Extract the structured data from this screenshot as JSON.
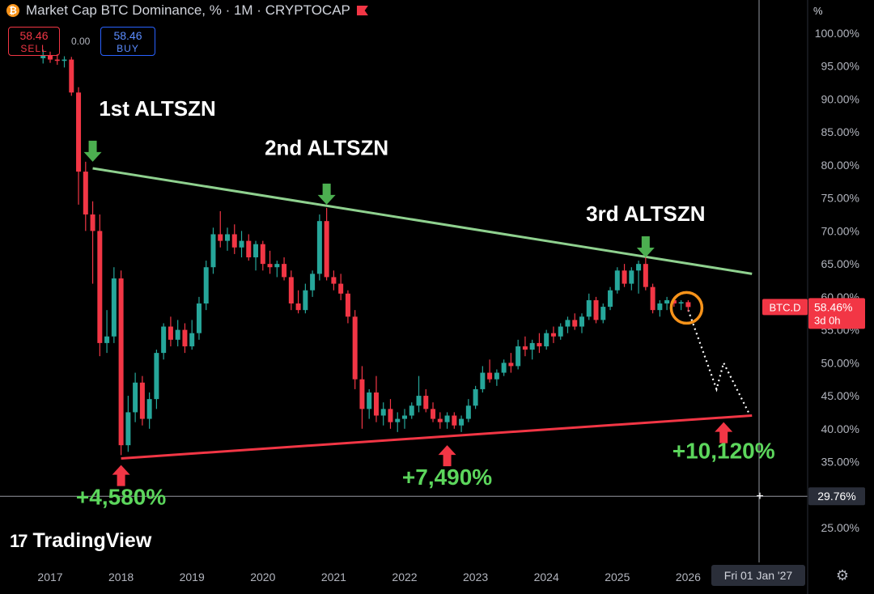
{
  "header": {
    "title": "Market Cap BTC Dominance, % · 1M · CRYPTOCAP",
    "sell_value": "58.46",
    "sell_label": "SELL",
    "spread": "0.00",
    "buy_value": "58.46",
    "buy_label": "BUY",
    "unit": "%"
  },
  "brand": "TradingView",
  "date_chip": "Fri 01 Jan '27",
  "price_tag": {
    "symbol": "BTC.D",
    "value": "58.46%",
    "countdown": "3d 0h"
  },
  "crosshair_tag": "29.76%",
  "colors": {
    "up": "#26a69a",
    "down": "#f23645",
    "resistance": "#8fd18f",
    "support": "#f23645",
    "highlight": "#f7931a",
    "annotation_green": "#5cd65c"
  },
  "chart_data": {
    "type": "candlestick",
    "title": "Market Cap BTC Dominance, % · 1M · CRYPTOCAP",
    "y_ticks": [
      "25.00%",
      "30.00%",
      "35.00%",
      "40.00%",
      "45.00%",
      "50.00%",
      "55.00%",
      "60.00%",
      "65.00%",
      "70.00%",
      "75.00%",
      "80.00%",
      "85.00%",
      "90.00%",
      "95.00%",
      "100.00%"
    ],
    "ylim": [
      22.5,
      103.5
    ],
    "x_ticks": [
      "2017",
      "2018",
      "2019",
      "2020",
      "2021",
      "2022",
      "2023",
      "2024",
      "2025",
      "2026"
    ],
    "xlim": [
      2016.8,
      2027.5
    ],
    "last_value": 58.46,
    "candles": [
      {
        "t": 2016.9,
        "o": 96.2,
        "h": 97.5,
        "l": 95.4,
        "c": 96.6
      },
      {
        "t": 2017.0,
        "o": 96.6,
        "h": 97.2,
        "l": 95.5,
        "c": 96.0
      },
      {
        "t": 2017.1,
        "o": 96.0,
        "h": 96.8,
        "l": 95.2,
        "c": 95.8
      },
      {
        "t": 2017.2,
        "o": 95.8,
        "h": 96.5,
        "l": 94.8,
        "c": 96.0
      },
      {
        "t": 2017.3,
        "o": 96.0,
        "h": 96.4,
        "l": 90.5,
        "c": 91.0
      },
      {
        "t": 2017.4,
        "o": 91.0,
        "h": 91.8,
        "l": 74.0,
        "c": 79.0
      },
      {
        "t": 2017.5,
        "o": 79.0,
        "h": 80.5,
        "l": 70.0,
        "c": 72.5
      },
      {
        "t": 2017.6,
        "o": 72.5,
        "h": 74.5,
        "l": 62.0,
        "c": 70.0
      },
      {
        "t": 2017.7,
        "o": 70.0,
        "h": 72.5,
        "l": 51.0,
        "c": 53.0
      },
      {
        "t": 2017.8,
        "o": 53.0,
        "h": 58.0,
        "l": 51.5,
        "c": 54.0
      },
      {
        "t": 2017.9,
        "o": 54.0,
        "h": 64.5,
        "l": 53.0,
        "c": 62.8
      },
      {
        "t": 2018.0,
        "o": 62.8,
        "h": 64.0,
        "l": 36.0,
        "c": 37.5
      },
      {
        "t": 2018.1,
        "o": 37.5,
        "h": 45.0,
        "l": 36.5,
        "c": 42.5
      },
      {
        "t": 2018.2,
        "o": 42.5,
        "h": 48.5,
        "l": 41.0,
        "c": 47.0
      },
      {
        "t": 2018.3,
        "o": 47.0,
        "h": 48.0,
        "l": 40.5,
        "c": 41.5
      },
      {
        "t": 2018.4,
        "o": 41.5,
        "h": 45.5,
        "l": 40.0,
        "c": 44.5
      },
      {
        "t": 2018.5,
        "o": 44.5,
        "h": 52.0,
        "l": 43.0,
        "c": 51.5
      },
      {
        "t": 2018.6,
        "o": 51.5,
        "h": 56.0,
        "l": 50.5,
        "c": 55.5
      },
      {
        "t": 2018.7,
        "o": 55.5,
        "h": 57.0,
        "l": 52.5,
        "c": 53.5
      },
      {
        "t": 2018.8,
        "o": 53.5,
        "h": 56.5,
        "l": 52.5,
        "c": 55.0
      },
      {
        "t": 2018.9,
        "o": 55.0,
        "h": 56.0,
        "l": 51.5,
        "c": 52.5
      },
      {
        "t": 2019.0,
        "o": 52.5,
        "h": 56.5,
        "l": 52.0,
        "c": 54.5
      },
      {
        "t": 2019.1,
        "o": 54.5,
        "h": 60.0,
        "l": 53.5,
        "c": 59.0
      },
      {
        "t": 2019.2,
        "o": 59.0,
        "h": 65.5,
        "l": 58.0,
        "c": 64.5
      },
      {
        "t": 2019.3,
        "o": 64.5,
        "h": 70.5,
        "l": 63.5,
        "c": 69.5
      },
      {
        "t": 2019.4,
        "o": 69.5,
        "h": 73.0,
        "l": 67.5,
        "c": 68.5
      },
      {
        "t": 2019.5,
        "o": 68.5,
        "h": 70.5,
        "l": 67.0,
        "c": 69.5
      },
      {
        "t": 2019.6,
        "o": 69.5,
        "h": 71.0,
        "l": 66.5,
        "c": 67.5
      },
      {
        "t": 2019.7,
        "o": 67.5,
        "h": 70.0,
        "l": 66.0,
        "c": 68.5
      },
      {
        "t": 2019.8,
        "o": 68.5,
        "h": 69.5,
        "l": 65.5,
        "c": 66.0
      },
      {
        "t": 2019.9,
        "o": 66.0,
        "h": 68.5,
        "l": 64.0,
        "c": 68.0
      },
      {
        "t": 2020.0,
        "o": 68.0,
        "h": 68.5,
        "l": 64.0,
        "c": 65.0
      },
      {
        "t": 2020.1,
        "o": 65.0,
        "h": 67.0,
        "l": 63.5,
        "c": 64.5
      },
      {
        "t": 2020.2,
        "o": 64.5,
        "h": 65.5,
        "l": 63.0,
        "c": 65.0
      },
      {
        "t": 2020.3,
        "o": 65.0,
        "h": 66.0,
        "l": 62.5,
        "c": 63.0
      },
      {
        "t": 2020.4,
        "o": 63.0,
        "h": 64.0,
        "l": 58.0,
        "c": 59.0
      },
      {
        "t": 2020.5,
        "o": 59.0,
        "h": 61.0,
        "l": 57.5,
        "c": 58.0
      },
      {
        "t": 2020.6,
        "o": 58.0,
        "h": 62.0,
        "l": 57.5,
        "c": 61.0
      },
      {
        "t": 2020.7,
        "o": 61.0,
        "h": 64.0,
        "l": 60.0,
        "c": 63.5
      },
      {
        "t": 2020.8,
        "o": 63.5,
        "h": 72.5,
        "l": 62.5,
        "c": 71.5
      },
      {
        "t": 2020.9,
        "o": 71.5,
        "h": 73.5,
        "l": 62.5,
        "c": 63.0
      },
      {
        "t": 2021.0,
        "o": 63.0,
        "h": 64.0,
        "l": 61.0,
        "c": 62.0
      },
      {
        "t": 2021.1,
        "o": 62.0,
        "h": 63.5,
        "l": 59.5,
        "c": 60.5
      },
      {
        "t": 2021.2,
        "o": 60.5,
        "h": 61.0,
        "l": 56.0,
        "c": 57.0
      },
      {
        "t": 2021.3,
        "o": 57.0,
        "h": 58.0,
        "l": 46.0,
        "c": 47.5
      },
      {
        "t": 2021.4,
        "o": 47.5,
        "h": 49.5,
        "l": 40.0,
        "c": 43.0
      },
      {
        "t": 2021.5,
        "o": 43.0,
        "h": 46.0,
        "l": 41.5,
        "c": 45.5
      },
      {
        "t": 2021.6,
        "o": 45.5,
        "h": 48.0,
        "l": 41.0,
        "c": 42.0
      },
      {
        "t": 2021.7,
        "o": 42.0,
        "h": 44.0,
        "l": 40.5,
        "c": 43.0
      },
      {
        "t": 2021.8,
        "o": 43.0,
        "h": 44.5,
        "l": 40.0,
        "c": 41.0
      },
      {
        "t": 2021.9,
        "o": 41.0,
        "h": 42.5,
        "l": 39.5,
        "c": 41.5
      },
      {
        "t": 2022.0,
        "o": 41.5,
        "h": 43.0,
        "l": 40.0,
        "c": 42.0
      },
      {
        "t": 2022.1,
        "o": 42.0,
        "h": 44.0,
        "l": 41.5,
        "c": 43.5
      },
      {
        "t": 2022.2,
        "o": 43.5,
        "h": 48.0,
        "l": 42.5,
        "c": 45.0
      },
      {
        "t": 2022.3,
        "o": 45.0,
        "h": 46.0,
        "l": 42.5,
        "c": 43.0
      },
      {
        "t": 2022.4,
        "o": 43.0,
        "h": 44.0,
        "l": 41.0,
        "c": 41.5
      },
      {
        "t": 2022.5,
        "o": 41.5,
        "h": 42.5,
        "l": 40.0,
        "c": 41.0
      },
      {
        "t": 2022.6,
        "o": 41.0,
        "h": 42.5,
        "l": 40.0,
        "c": 42.0
      },
      {
        "t": 2022.7,
        "o": 42.0,
        "h": 42.5,
        "l": 40.0,
        "c": 40.5
      },
      {
        "t": 2022.8,
        "o": 40.5,
        "h": 42.0,
        "l": 39.5,
        "c": 41.5
      },
      {
        "t": 2022.9,
        "o": 41.5,
        "h": 44.5,
        "l": 41.0,
        "c": 43.5
      },
      {
        "t": 2023.0,
        "o": 43.5,
        "h": 46.5,
        "l": 43.0,
        "c": 46.0
      },
      {
        "t": 2023.1,
        "o": 46.0,
        "h": 49.5,
        "l": 45.5,
        "c": 48.5
      },
      {
        "t": 2023.2,
        "o": 48.5,
        "h": 50.5,
        "l": 47.0,
        "c": 47.5
      },
      {
        "t": 2023.3,
        "o": 47.5,
        "h": 49.0,
        "l": 46.5,
        "c": 48.5
      },
      {
        "t": 2023.4,
        "o": 48.5,
        "h": 50.5,
        "l": 48.0,
        "c": 50.0
      },
      {
        "t": 2023.5,
        "o": 50.0,
        "h": 51.5,
        "l": 48.5,
        "c": 49.5
      },
      {
        "t": 2023.6,
        "o": 49.5,
        "h": 53.5,
        "l": 49.0,
        "c": 52.5
      },
      {
        "t": 2023.7,
        "o": 52.5,
        "h": 54.0,
        "l": 51.0,
        "c": 52.0
      },
      {
        "t": 2023.8,
        "o": 52.0,
        "h": 53.5,
        "l": 50.5,
        "c": 53.0
      },
      {
        "t": 2023.9,
        "o": 53.0,
        "h": 54.5,
        "l": 51.5,
        "c": 52.5
      },
      {
        "t": 2024.0,
        "o": 52.5,
        "h": 55.0,
        "l": 52.0,
        "c": 54.5
      },
      {
        "t": 2024.1,
        "o": 54.5,
        "h": 55.5,
        "l": 53.0,
        "c": 54.0
      },
      {
        "t": 2024.2,
        "o": 54.0,
        "h": 56.0,
        "l": 53.5,
        "c": 55.5
      },
      {
        "t": 2024.3,
        "o": 55.5,
        "h": 57.0,
        "l": 54.5,
        "c": 56.5
      },
      {
        "t": 2024.4,
        "o": 56.5,
        "h": 57.5,
        "l": 55.0,
        "c": 55.5
      },
      {
        "t": 2024.5,
        "o": 55.5,
        "h": 57.5,
        "l": 54.5,
        "c": 57.0
      },
      {
        "t": 2024.6,
        "o": 57.0,
        "h": 60.5,
        "l": 56.5,
        "c": 59.5
      },
      {
        "t": 2024.7,
        "o": 59.5,
        "h": 60.0,
        "l": 56.0,
        "c": 56.5
      },
      {
        "t": 2024.8,
        "o": 56.5,
        "h": 59.0,
        "l": 56.0,
        "c": 58.5
      },
      {
        "t": 2024.9,
        "o": 58.5,
        "h": 61.5,
        "l": 58.0,
        "c": 61.0
      },
      {
        "t": 2025.0,
        "o": 61.0,
        "h": 64.5,
        "l": 60.5,
        "c": 64.0
      },
      {
        "t": 2025.1,
        "o": 64.0,
        "h": 65.0,
        "l": 61.5,
        "c": 62.0
      },
      {
        "t": 2025.2,
        "o": 62.0,
        "h": 64.5,
        "l": 61.0,
        "c": 64.0
      },
      {
        "t": 2025.3,
        "o": 64.0,
        "h": 65.5,
        "l": 60.5,
        "c": 65.0
      },
      {
        "t": 2025.4,
        "o": 65.0,
        "h": 66.0,
        "l": 61.0,
        "c": 61.5
      },
      {
        "t": 2025.5,
        "o": 61.5,
        "h": 62.0,
        "l": 57.5,
        "c": 58.0
      },
      {
        "t": 2025.6,
        "o": 58.0,
        "h": 59.5,
        "l": 57.0,
        "c": 59.0
      },
      {
        "t": 2025.7,
        "o": 59.0,
        "h": 60.0,
        "l": 58.0,
        "c": 59.5
      },
      {
        "t": 2025.8,
        "o": 59.5,
        "h": 60.0,
        "l": 58.5,
        "c": 59.0
      },
      {
        "t": 2025.9,
        "o": 59.0,
        "h": 59.5,
        "l": 58.0,
        "c": 59.2
      },
      {
        "t": 2026.0,
        "o": 59.2,
        "h": 59.5,
        "l": 57.8,
        "c": 58.46
      }
    ],
    "resistance_line": {
      "from": {
        "t": 2017.6,
        "v": 79.5
      },
      "to": {
        "t": 2026.9,
        "v": 63.5
      }
    },
    "support_line": {
      "from": {
        "t": 2018.0,
        "v": 35.5
      },
      "to": {
        "t": 2026.9,
        "v": 42.0
      }
    },
    "projection": [
      {
        "t": 2026.0,
        "v": 58.0
      },
      {
        "t": 2026.4,
        "v": 46.0
      },
      {
        "t": 2026.5,
        "v": 50.0
      },
      {
        "t": 2026.85,
        "v": 42.5
      }
    ],
    "crosshair": {
      "t": 2027.0,
      "v": 29.76
    },
    "annotations": [
      {
        "text": "1st ALTSZN",
        "t": 2017.6,
        "v": 87.5,
        "arrow": "down",
        "arrow_v": 80.5
      },
      {
        "text": "2nd ALTSZN",
        "t": 2020.9,
        "v": 81.5,
        "arrow": "down",
        "arrow_v": 74.0
      },
      {
        "text": "3rd ALTSZN",
        "t": 2025.4,
        "v": 71.5,
        "arrow": "down",
        "arrow_v": 66.0
      },
      {
        "text": "+4,580%",
        "t": 2018.0,
        "v": 28.5,
        "arrow": "up",
        "arrow_v": 34.5
      },
      {
        "text": "+7,490%",
        "t": 2022.6,
        "v": 31.5,
        "arrow": "up",
        "arrow_v": 37.5
      },
      {
        "text": "+10,120%",
        "t": 2026.5,
        "v": 35.5,
        "arrow": "up",
        "arrow_v": 41.0
      }
    ]
  }
}
